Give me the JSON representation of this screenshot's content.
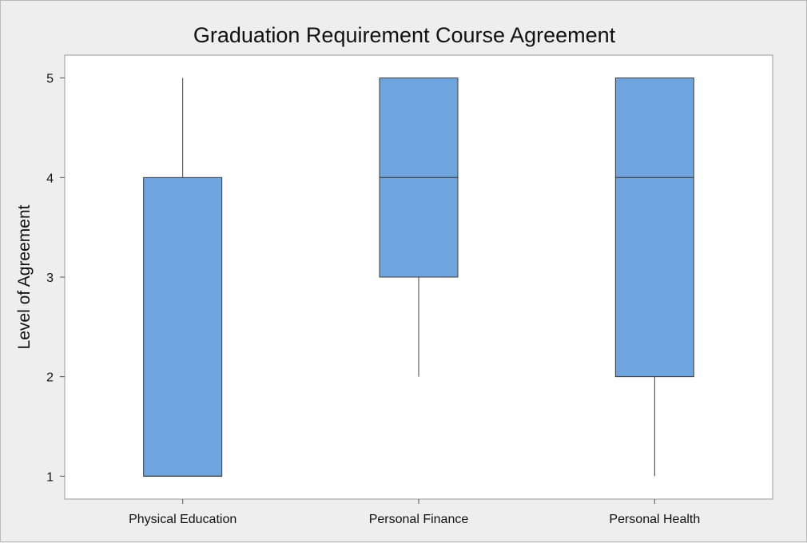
{
  "chart_data": {
    "type": "boxplot",
    "title": "Graduation Requirement Course Agreement",
    "xlabel": "",
    "ylabel": "Level of Agreement",
    "ylim": [
      0.77,
      5.23
    ],
    "yticks": [
      1,
      2,
      3,
      4,
      5
    ],
    "grid": false,
    "categories": [
      "Physical Education",
      "Personal Finance",
      "Personal Health"
    ],
    "boxes": [
      {
        "category": "Physical Education",
        "min": 1,
        "q1": 1,
        "median": 1,
        "q3": 4,
        "max": 5
      },
      {
        "category": "Personal Finance",
        "min": 2,
        "q1": 3,
        "median": 4,
        "q3": 5,
        "max": 5
      },
      {
        "category": "Personal Health",
        "min": 1,
        "q1": 2,
        "median": 4,
        "q3": 5,
        "max": 5
      }
    ],
    "colors": {
      "box_fill": "#6fa5de",
      "box_stroke": "#3d3d3d",
      "plot_bg": "#ffffff",
      "page_bg": "#eeeeee"
    }
  }
}
